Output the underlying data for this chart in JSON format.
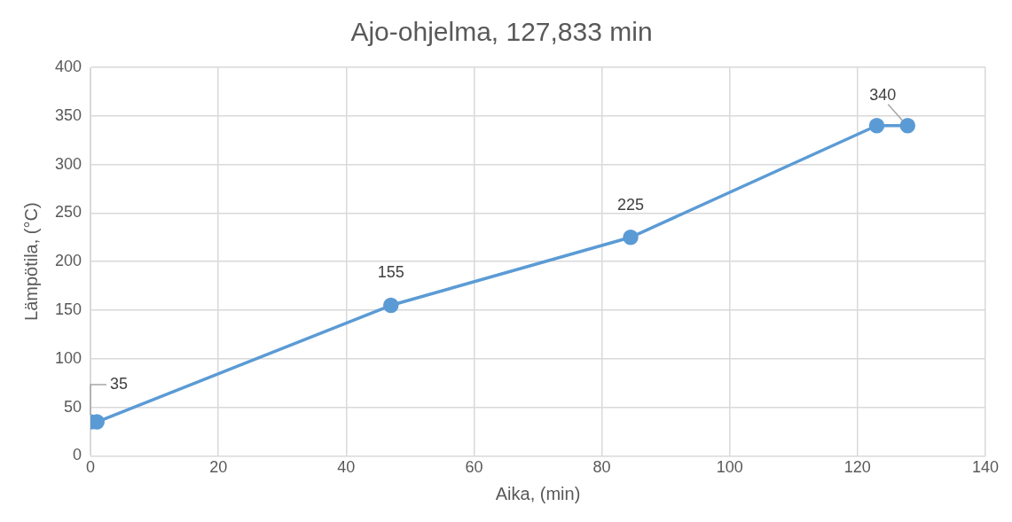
{
  "chart_data": {
    "type": "line",
    "title": "Ajo-ohjelma, 127,833 min",
    "xlabel": "Aika, (min)",
    "ylabel": "Lämpötila, (°C)",
    "x": [
      0,
      1,
      47,
      84.5,
      123,
      127.833
    ],
    "series": [
      {
        "color": "#5b9bd5",
        "values": [
          35,
          35,
          155,
          225,
          340,
          340
        ],
        "value_labels": [
          "35",
          null,
          "155",
          "225",
          null,
          "340"
        ]
      }
    ],
    "xlim": [
      0,
      140
    ],
    "xticks": [
      0,
      20,
      40,
      60,
      80,
      100,
      120,
      140
    ],
    "ylim": [
      0,
      400
    ],
    "yticks": [
      0,
      50,
      100,
      150,
      200,
      250,
      300,
      350,
      400
    ],
    "grid": true,
    "legend": false,
    "marker": "circle",
    "line_style": "solid"
  }
}
